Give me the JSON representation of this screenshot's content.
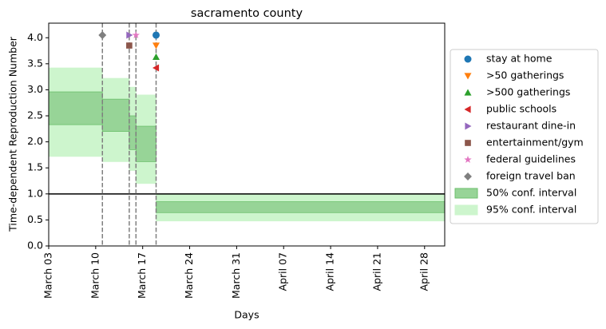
{
  "chart_data": {
    "type": "step-interval",
    "title": "sacramento county",
    "x_label": "Days",
    "y_label": "Time-dependent Reproduction Number",
    "xlim": [
      "March 03",
      "May 01"
    ],
    "xticks": [
      "March 03",
      "March 10",
      "March 17",
      "March 24",
      "March 31",
      "April 07",
      "April 14",
      "April 21",
      "April 28"
    ],
    "ylim": [
      0,
      4.28
    ],
    "yticks": [
      {
        "value": 0,
        "label": "0.0"
      },
      {
        "value": 0.5,
        "label": "0.5"
      },
      {
        "value": 1,
        "label": "1.0"
      },
      {
        "value": 1.5,
        "label": "1.5"
      },
      {
        "value": 2,
        "label": "2.0"
      },
      {
        "value": 2.5,
        "label": "2.5"
      },
      {
        "value": 3,
        "label": "3.0"
      },
      {
        "value": 3.5,
        "label": "3.5"
      },
      {
        "value": 4,
        "label": "4.0"
      }
    ],
    "hline": 1,
    "vlines": [
      "March 11",
      "March 15",
      "March 16",
      "March 19"
    ],
    "bands": [
      {
        "name": "50% conf. interval",
        "color": "#97d497",
        "edge": "#6cbf6c",
        "bins": [
          "March 03",
          "March 11",
          "March 15",
          "March 16",
          "March 19",
          "May 01"
        ],
        "lower": [
          2.33,
          2.2,
          1.85,
          1.62,
          0.64
        ],
        "upper": [
          2.96,
          2.82,
          2.5,
          2.3,
          0.85
        ]
      },
      {
        "name": "95% conf. interval",
        "color": "#cdf5cd",
        "edge": "#cdf5cd",
        "bins": [
          "March 03",
          "March 11",
          "March 15",
          "March 16",
          "March 19",
          "May 01"
        ],
        "lower": [
          1.72,
          1.62,
          1.45,
          1.2,
          0.48
        ],
        "upper": [
          3.42,
          3.22,
          3.05,
          2.9,
          1.0
        ]
      }
    ],
    "series": [
      {
        "name": "stay at home",
        "color": "#1f77b4",
        "marker": "o",
        "x": [
          "March 19"
        ],
        "values": [
          4.05
        ]
      },
      {
        "name": ">50 gatherings",
        "color": "#ff7f0e",
        "marker": "v",
        "x": [
          "March 19"
        ],
        "values": [
          3.85
        ]
      },
      {
        "name": ">500 gatherings",
        "color": "#2ca02c",
        "marker": "^",
        "x": [
          "March 19"
        ],
        "values": [
          3.63
        ]
      },
      {
        "name": "public schools",
        "color": "#d62728",
        "marker": "<",
        "x": [
          "March 19"
        ],
        "values": [
          3.42
        ]
      },
      {
        "name": "restaurant dine-in",
        "color": "#9467bd",
        "marker": ">",
        "x": [
          "March 15"
        ],
        "values": [
          4.05
        ]
      },
      {
        "name": "entertainment/gym",
        "color": "#8c564b",
        "marker": "s",
        "x": [
          "March 15"
        ],
        "values": [
          3.85
        ]
      },
      {
        "name": "federal guidelines",
        "color": "#e377c2",
        "marker": "*",
        "x": [
          "March 16"
        ],
        "values": [
          4.05
        ]
      },
      {
        "name": "foreign travel ban",
        "color": "#7f7f7f",
        "marker": "D",
        "x": [
          "March 11"
        ],
        "values": [
          4.05
        ]
      }
    ],
    "grid": false
  }
}
